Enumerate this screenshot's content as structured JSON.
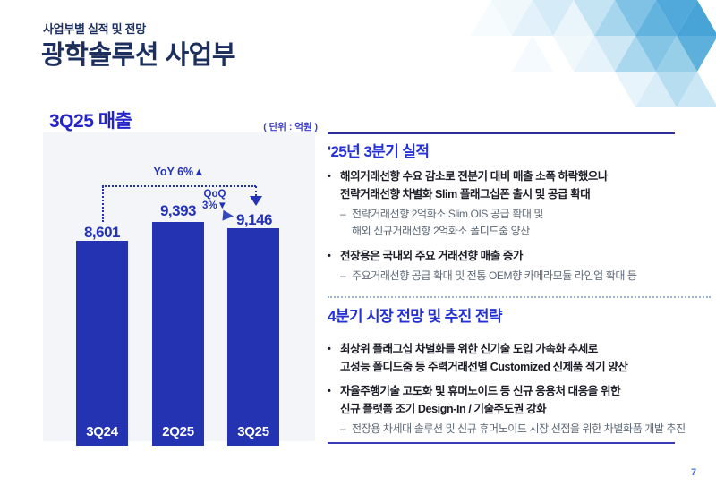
{
  "header": {
    "eyebrow": "사업부별 실적 및 전망",
    "title": "광학솔루션 사업부"
  },
  "chart": {
    "title": "3Q25 매출",
    "unit_label": "( 단위 : 억원 )",
    "yoy_label": "YoY 6%▲",
    "qoq_line1": "QoQ",
    "qoq_line2": "3%▼",
    "bars": [
      {
        "category": "3Q24",
        "value_label": "8,601"
      },
      {
        "category": "2Q25",
        "value_label": "9,393"
      },
      {
        "category": "3Q25",
        "value_label": "9,146"
      }
    ]
  },
  "chart_data": {
    "type": "bar",
    "title": "3Q25 매출",
    "unit": "억원",
    "categories": [
      "3Q24",
      "2Q25",
      "3Q25"
    ],
    "values": [
      8601,
      9393,
      9146
    ],
    "ylim": [
      0,
      9393
    ],
    "bar_color": "#2433b2",
    "grid": false,
    "legend": false,
    "annotations": [
      {
        "label": "YoY 6%▲",
        "type": "change",
        "from": "3Q24",
        "to": "3Q25"
      },
      {
        "label": "QoQ 3%▼",
        "type": "change",
        "from": "2Q25",
        "to": "3Q25"
      }
    ]
  },
  "markers": {
    "bullet": "•",
    "dash": "–"
  },
  "sections": [
    {
      "title": "'25년 3분기 실적",
      "bullets": [
        {
          "lines": [
            "해외거래선향 수요 감소로 전분기 대비 매출 소폭 하락했으나",
            "전략거래선향 차별화 Slim 플래그십폰 출시 및 공급 확대"
          ],
          "subs": [
            {
              "lines": [
                "전략거래선향 2억화소 Slim OIS 공급 확대 및",
                "해외 신규거래선향 2억화소 폴디드줌 양산"
              ]
            }
          ]
        },
        {
          "lines": [
            "전장용은 국내외 주요 거래선향 매출 증가"
          ],
          "subs": [
            {
              "lines": [
                "주요거래선향 공급 확대 및 전통 OEM향 카메라모듈 라인업 확대 등"
              ]
            }
          ]
        }
      ]
    },
    {
      "title": "4분기 시장 전망 및 추진 전략",
      "bullets": [
        {
          "lines": [
            "최상위 플래그십 차별화를 위한 신기술 도입 가속화 추세로",
            "고성능 폴디드줌 등 주력거래선별 Customized 신제품 적기 양산"
          ],
          "subs": []
        },
        {
          "lines": [
            "자율주행기술 고도화 및 휴머노이드 등 신규 응용처 대응을 위한",
            "신규 플랫폼 조기 Design-In / 기술주도권 강화"
          ],
          "subs": [
            {
              "lines": [
                "전장용 차세대 솔루션 및 신규 휴머노이드 시장 선점을 위한 차별화품 개발 추진"
              ]
            }
          ]
        }
      ]
    }
  ],
  "page": {
    "number": "7"
  },
  "colors": {
    "accent_navy": "#1c2f5e",
    "accent_blue": "#2531d6",
    "bar_blue": "#2433b2",
    "panel_bg": "#f3f5f9"
  }
}
